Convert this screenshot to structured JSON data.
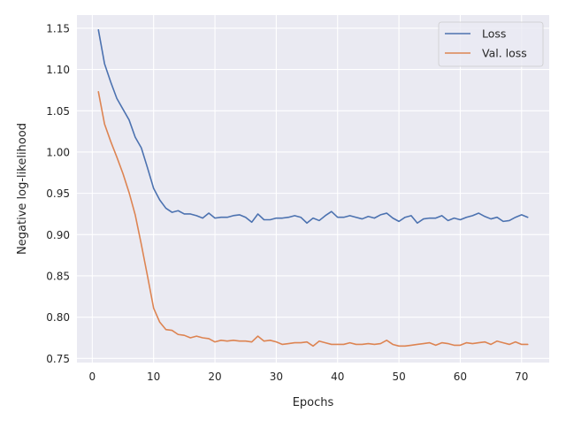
{
  "chart_data": {
    "type": "line",
    "title": "",
    "xlabel": "Epochs",
    "ylabel": "Negative log-likelihood",
    "xlim": [
      -2.5,
      74.5
    ],
    "ylim": [
      0.745,
      1.166
    ],
    "xticks": [
      0,
      10,
      20,
      30,
      40,
      50,
      60,
      70
    ],
    "yticks": [
      0.75,
      0.8,
      0.85,
      0.9,
      0.95,
      1.0,
      1.05,
      1.1,
      1.15
    ],
    "ytick_labels": [
      "0.75",
      "0.80",
      "0.85",
      "0.90",
      "0.95",
      "1.00",
      "1.05",
      "1.10",
      "1.15"
    ],
    "grid": true,
    "legend_position": "top-right",
    "x": [
      1,
      2,
      3,
      4,
      5,
      6,
      7,
      8,
      9,
      10,
      11,
      12,
      13,
      14,
      15,
      16,
      17,
      18,
      19,
      20,
      21,
      22,
      23,
      24,
      25,
      26,
      27,
      28,
      29,
      30,
      31,
      32,
      33,
      34,
      35,
      36,
      37,
      38,
      39,
      40,
      41,
      42,
      43,
      44,
      45,
      46,
      47,
      48,
      49,
      50,
      51,
      52,
      53,
      54,
      55,
      56,
      57,
      58,
      59,
      60,
      61,
      62,
      63,
      64,
      65,
      66,
      67,
      68,
      69,
      70,
      71
    ],
    "series": [
      {
        "name": "Loss",
        "color": "#4c72b0",
        "values": [
          1.148,
          1.107,
          1.085,
          1.065,
          1.052,
          1.039,
          1.018,
          1.005,
          0.981,
          0.956,
          0.942,
          0.932,
          0.927,
          0.929,
          0.925,
          0.925,
          0.923,
          0.92,
          0.926,
          0.92,
          0.921,
          0.921,
          0.923,
          0.924,
          0.921,
          0.915,
          0.925,
          0.918,
          0.918,
          0.92,
          0.92,
          0.921,
          0.923,
          0.921,
          0.914,
          0.92,
          0.917,
          0.923,
          0.928,
          0.921,
          0.921,
          0.923,
          0.921,
          0.919,
          0.922,
          0.92,
          0.924,
          0.926,
          0.92,
          0.916,
          0.921,
          0.923,
          0.914,
          0.919,
          0.92,
          0.92,
          0.923,
          0.917,
          0.92,
          0.918,
          0.921,
          0.923,
          0.926,
          0.922,
          0.919,
          0.921,
          0.916,
          0.917,
          0.921,
          0.924,
          0.921
        ]
      },
      {
        "name": "Val. loss",
        "color": "#dd8452",
        "values": [
          1.073,
          1.034,
          1.013,
          0.994,
          0.974,
          0.951,
          0.924,
          0.888,
          0.85,
          0.811,
          0.794,
          0.785,
          0.784,
          0.779,
          0.778,
          0.775,
          0.777,
          0.775,
          0.774,
          0.77,
          0.772,
          0.771,
          0.772,
          0.771,
          0.771,
          0.77,
          0.777,
          0.771,
          0.772,
          0.77,
          0.767,
          0.768,
          0.769,
          0.769,
          0.77,
          0.765,
          0.771,
          0.769,
          0.767,
          0.767,
          0.767,
          0.769,
          0.767,
          0.767,
          0.768,
          0.767,
          0.768,
          0.772,
          0.767,
          0.765,
          0.765,
          0.766,
          0.767,
          0.768,
          0.769,
          0.766,
          0.769,
          0.768,
          0.766,
          0.766,
          0.769,
          0.768,
          0.769,
          0.77,
          0.767,
          0.771,
          0.769,
          0.767,
          0.77,
          0.767,
          0.767
        ]
      }
    ]
  }
}
